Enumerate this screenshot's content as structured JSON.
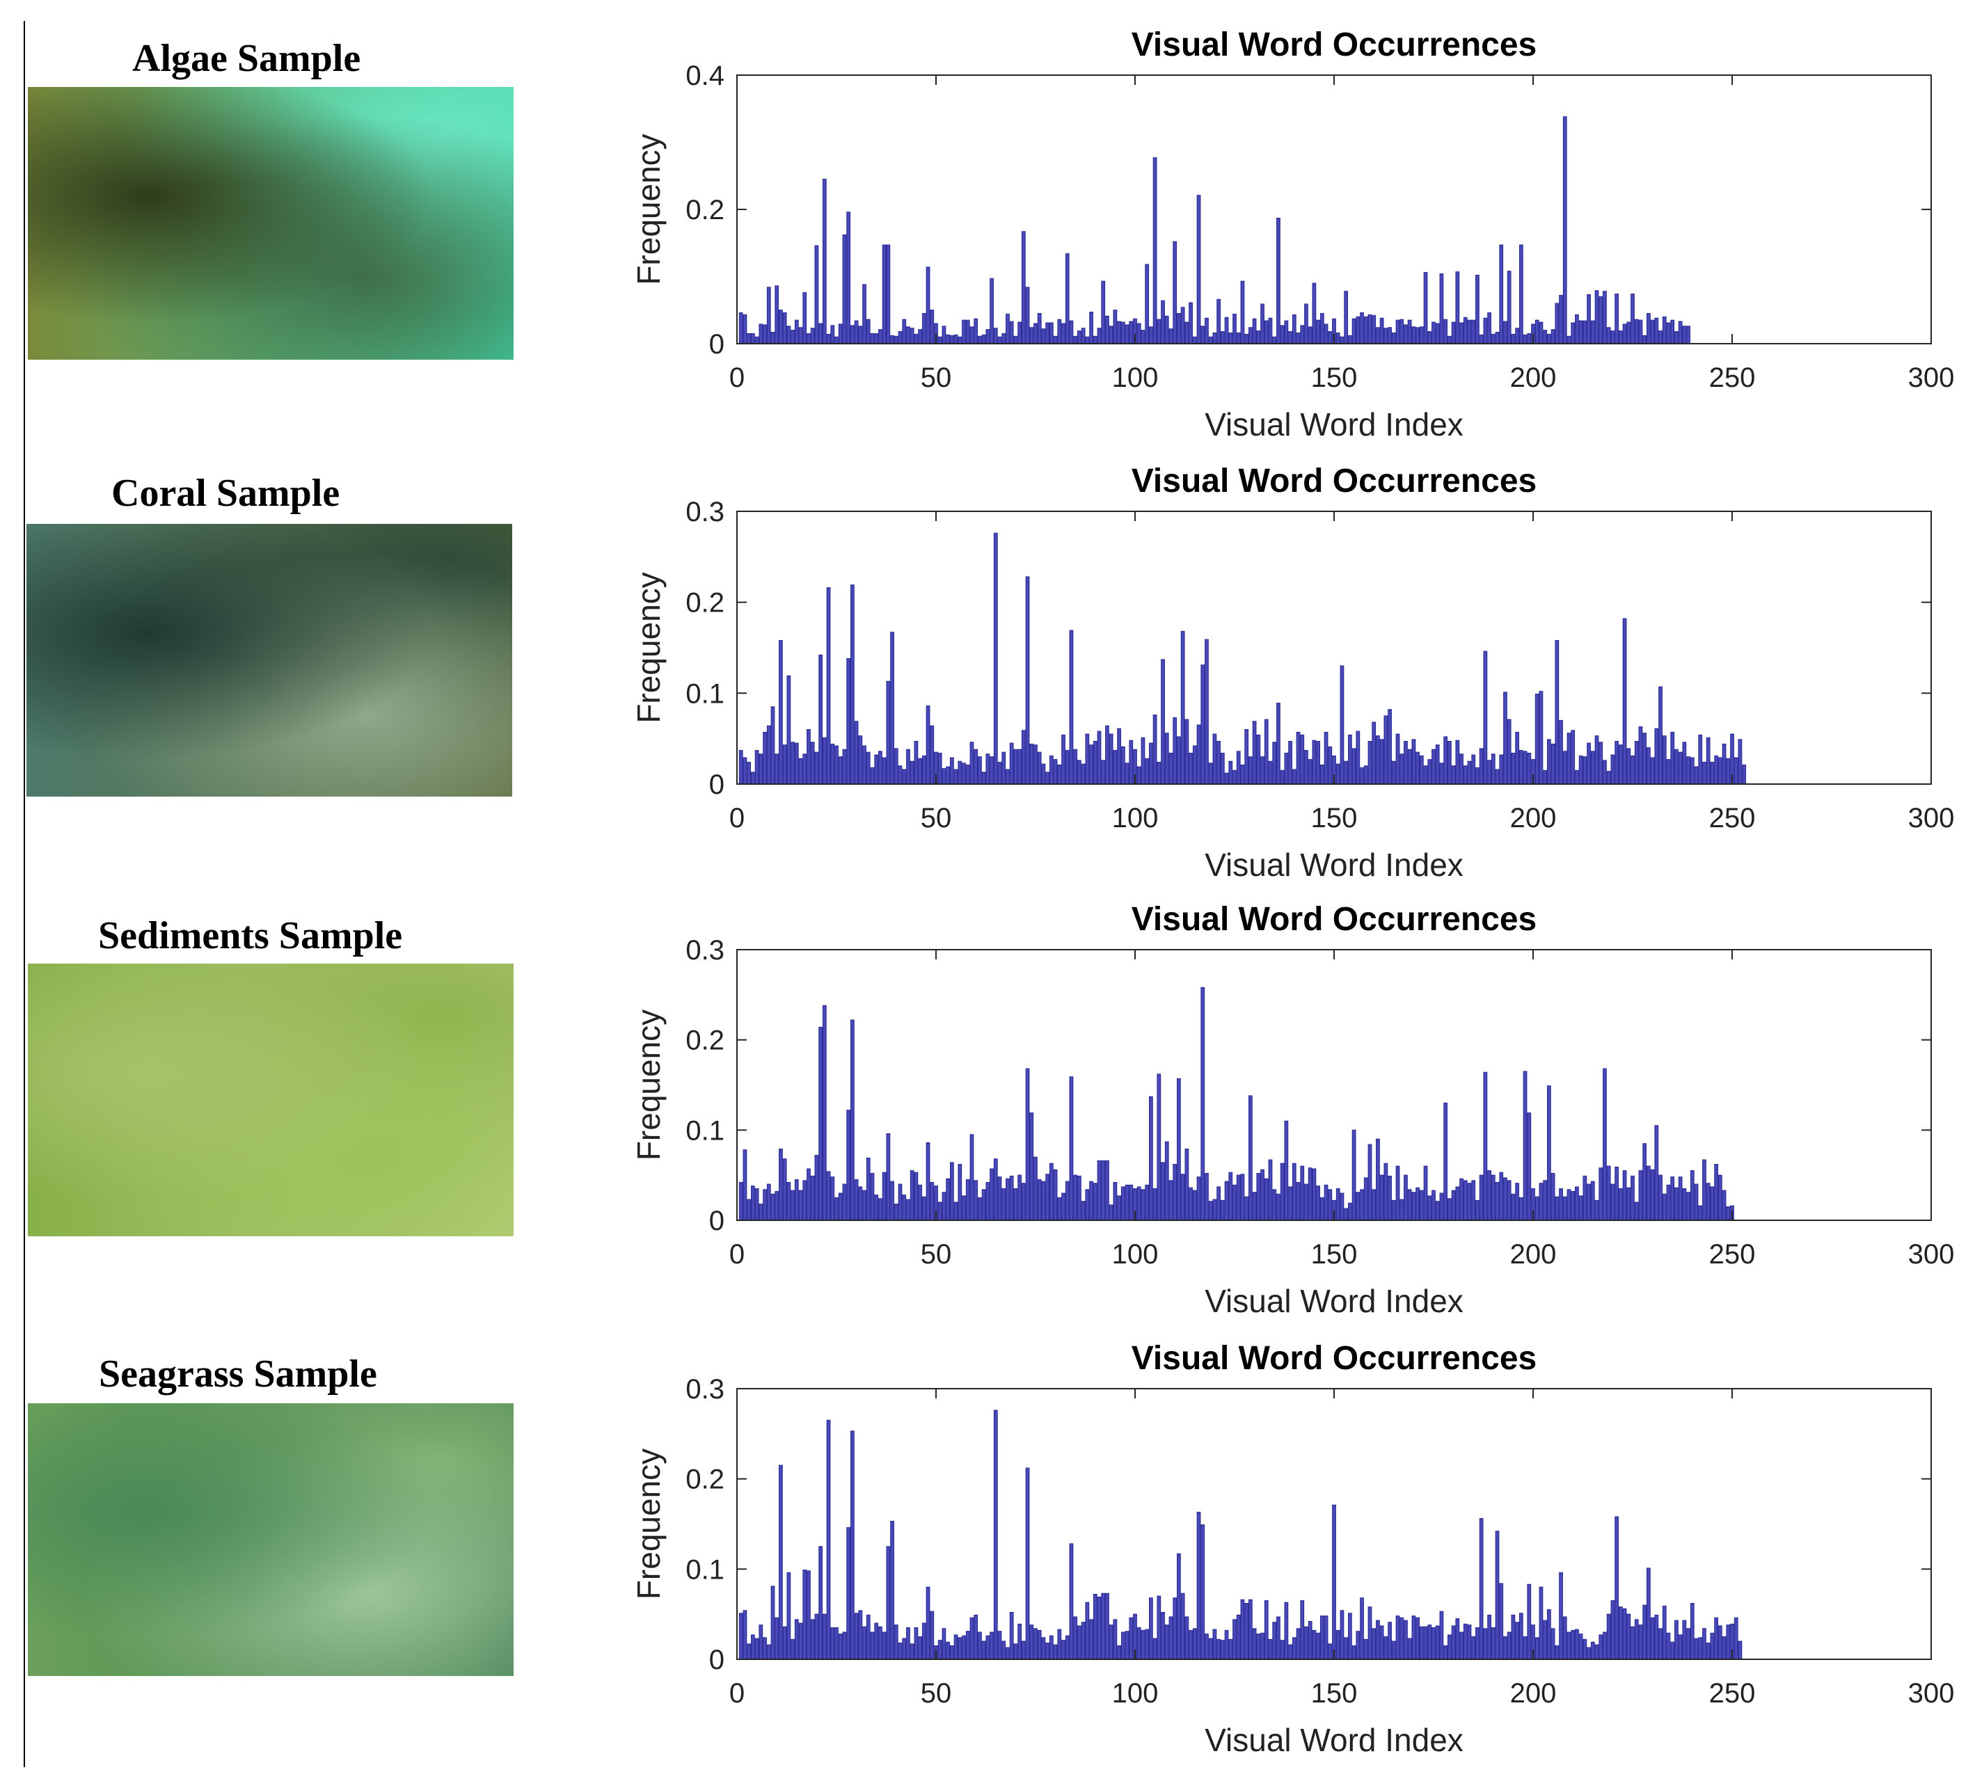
{
  "figure": {
    "panels": [
      {
        "sample_label": "Algae Sample",
        "photo_name": "algae-sample-photo",
        "colors": [
          "#2f3c1a",
          "#7a8a3a",
          "#3f6f4a",
          "#3fd6a8",
          "#6ae6c2"
        ]
      },
      {
        "sample_label": "Coral Sample",
        "photo_name": "coral-sample-photo",
        "colors": [
          "#1f3a33",
          "#4e7a6a",
          "#8fa88a",
          "#5d6a3a",
          "#2c4a3a"
        ]
      },
      {
        "sample_label": "Sediments Sample",
        "photo_name": "sediments-sample-photo",
        "colors": [
          "#a7c26a",
          "#88b04a",
          "#9cc25a",
          "#b9cf7a",
          "#8fb24e"
        ]
      },
      {
        "sample_label": "Seagrass Sample",
        "photo_name": "seagrass-sample-photo",
        "colors": [
          "#4a8a58",
          "#6aa05a",
          "#9cc69a",
          "#3f7a4e",
          "#7fb070"
        ]
      }
    ]
  },
  "chart_data": [
    {
      "type": "bar",
      "title": "Visual Word Occurrences",
      "xlabel": "Visual Word Index",
      "ylabel": "Frequency",
      "xlim": [
        0,
        300
      ],
      "ylim": [
        0,
        0.4
      ],
      "xticks": [
        0,
        50,
        100,
        150,
        200,
        250,
        300
      ],
      "yticks": [
        0,
        0.2,
        0.4
      ],
      "ytick_labels": [
        "0",
        "0.2",
        "0.4"
      ],
      "color": "#2d2d9a",
      "values": [
        0.046,
        0.043,
        0.015,
        0.015,
        0.01,
        0.029,
        0.028,
        0.084,
        0.017,
        0.086,
        0.05,
        0.046,
        0.026,
        0.02,
        0.035,
        0.024,
        0.076,
        0.015,
        0.023,
        0.146,
        0.03,
        0.245,
        0.014,
        0.027,
        0.01,
        0.029,
        0.162,
        0.196,
        0.027,
        0.034,
        0.026,
        0.088,
        0.036,
        0.015,
        0.015,
        0.021,
        0.147,
        0.147,
        0.012,
        0.011,
        0.018,
        0.036,
        0.025,
        0.023,
        0.014,
        0.021,
        0.045,
        0.114,
        0.05,
        0.03,
        0.01,
        0.026,
        0.013,
        0.012,
        0.013,
        0.01,
        0.035,
        0.035,
        0.025,
        0.037,
        0.011,
        0.013,
        0.021,
        0.097,
        0.023,
        0.01,
        0.015,
        0.044,
        0.033,
        0.011,
        0.032,
        0.167,
        0.084,
        0.024,
        0.03,
        0.045,
        0.022,
        0.031,
        0.031,
        0.011,
        0.036,
        0.03,
        0.134,
        0.034,
        0.011,
        0.019,
        0.023,
        0.01,
        0.047,
        0.011,
        0.023,
        0.093,
        0.041,
        0.026,
        0.05,
        0.033,
        0.032,
        0.028,
        0.033,
        0.037,
        0.03,
        0.02,
        0.118,
        0.025,
        0.277,
        0.036,
        0.064,
        0.041,
        0.022,
        0.152,
        0.045,
        0.054,
        0.032,
        0.061,
        0.01,
        0.221,
        0.026,
        0.038,
        0.01,
        0.016,
        0.066,
        0.018,
        0.039,
        0.016,
        0.044,
        0.016,
        0.093,
        0.014,
        0.024,
        0.037,
        0.019,
        0.059,
        0.034,
        0.038,
        0.01,
        0.187,
        0.027,
        0.034,
        0.018,
        0.043,
        0.016,
        0.027,
        0.059,
        0.025,
        0.09,
        0.035,
        0.045,
        0.029,
        0.018,
        0.037,
        0.016,
        0.01,
        0.078,
        0.012,
        0.037,
        0.04,
        0.046,
        0.04,
        0.043,
        0.042,
        0.024,
        0.038,
        0.023,
        0.024,
        0.016,
        0.035,
        0.036,
        0.028,
        0.035,
        0.025,
        0.024,
        0.025,
        0.106,
        0.018,
        0.032,
        0.03,
        0.104,
        0.036,
        0.011,
        0.032,
        0.107,
        0.031,
        0.039,
        0.035,
        0.035,
        0.102,
        0.013,
        0.038,
        0.046,
        0.014,
        0.017,
        0.147,
        0.033,
        0.108,
        0.014,
        0.023,
        0.147,
        0.013,
        0.015,
        0.029,
        0.035,
        0.032,
        0.02,
        0.014,
        0.021,
        0.06,
        0.072,
        0.338,
        0.011,
        0.031,
        0.043,
        0.034,
        0.034,
        0.073,
        0.034,
        0.079,
        0.07,
        0.078,
        0.024,
        0.019,
        0.074,
        0.019,
        0.029,
        0.032,
        0.074,
        0.036,
        0.035,
        0.012,
        0.045,
        0.035,
        0.038,
        0.019,
        0.04,
        0.031,
        0.035,
        0.018,
        0.033,
        0.026,
        0.026
      ]
    },
    {
      "type": "bar",
      "title": "Visual Word Occurrences",
      "xlabel": "Visual Word Index",
      "ylabel": "Frequency",
      "xlim": [
        0,
        300
      ],
      "ylim": [
        0,
        0.3
      ],
      "xticks": [
        0,
        50,
        100,
        150,
        200,
        250,
        300
      ],
      "yticks": [
        0,
        0.1,
        0.2,
        0.3
      ],
      "ytick_labels": [
        "0",
        "0.1",
        "0.2",
        "0.3"
      ],
      "color": "#2d2d9a",
      "values": [
        0.037,
        0.029,
        0.024,
        0.013,
        0.037,
        0.033,
        0.057,
        0.064,
        0.085,
        0.033,
        0.158,
        0.043,
        0.119,
        0.046,
        0.045,
        0.028,
        0.033,
        0.06,
        0.046,
        0.035,
        0.142,
        0.051,
        0.216,
        0.044,
        0.042,
        0.03,
        0.038,
        0.138,
        0.219,
        0.069,
        0.053,
        0.042,
        0.035,
        0.018,
        0.032,
        0.036,
        0.029,
        0.113,
        0.167,
        0.039,
        0.02,
        0.016,
        0.038,
        0.025,
        0.047,
        0.028,
        0.031,
        0.086,
        0.064,
        0.035,
        0.034,
        0.017,
        0.019,
        0.029,
        0.016,
        0.025,
        0.023,
        0.021,
        0.046,
        0.038,
        0.03,
        0.013,
        0.033,
        0.03,
        0.276,
        0.024,
        0.035,
        0.016,
        0.045,
        0.038,
        0.038,
        0.059,
        0.228,
        0.044,
        0.043,
        0.035,
        0.022,
        0.013,
        0.031,
        0.027,
        0.021,
        0.054,
        0.037,
        0.169,
        0.038,
        0.026,
        0.022,
        0.055,
        0.043,
        0.047,
        0.058,
        0.026,
        0.064,
        0.055,
        0.037,
        0.061,
        0.041,
        0.023,
        0.048,
        0.038,
        0.019,
        0.051,
        0.028,
        0.045,
        0.076,
        0.024,
        0.137,
        0.056,
        0.034,
        0.073,
        0.052,
        0.168,
        0.071,
        0.034,
        0.042,
        0.065,
        0.131,
        0.159,
        0.023,
        0.055,
        0.047,
        0.034,
        0.012,
        0.025,
        0.015,
        0.036,
        0.021,
        0.06,
        0.03,
        0.069,
        0.054,
        0.03,
        0.071,
        0.025,
        0.046,
        0.089,
        0.015,
        0.034,
        0.047,
        0.016,
        0.057,
        0.054,
        0.037,
        0.027,
        0.048,
        0.047,
        0.021,
        0.057,
        0.041,
        0.031,
        0.022,
        0.13,
        0.025,
        0.054,
        0.039,
        0.058,
        0.018,
        0.02,
        0.047,
        0.068,
        0.053,
        0.049,
        0.075,
        0.082,
        0.025,
        0.055,
        0.033,
        0.047,
        0.038,
        0.049,
        0.035,
        0.031,
        0.02,
        0.027,
        0.038,
        0.043,
        0.023,
        0.052,
        0.047,
        0.02,
        0.048,
        0.033,
        0.02,
        0.025,
        0.032,
        0.018,
        0.039,
        0.146,
        0.026,
        0.033,
        0.016,
        0.032,
        0.101,
        0.071,
        0.034,
        0.057,
        0.037,
        0.036,
        0.034,
        0.027,
        0.099,
        0.102,
        0.015,
        0.049,
        0.044,
        0.158,
        0.07,
        0.036,
        0.056,
        0.059,
        0.015,
        0.031,
        0.03,
        0.045,
        0.036,
        0.053,
        0.046,
        0.026,
        0.014,
        0.032,
        0.047,
        0.043,
        0.182,
        0.039,
        0.031,
        0.047,
        0.063,
        0.056,
        0.04,
        0.029,
        0.061,
        0.107,
        0.053,
        0.027,
        0.057,
        0.038,
        0.035,
        0.046,
        0.03,
        0.029,
        0.019,
        0.054,
        0.024,
        0.051,
        0.024,
        0.031,
        0.029,
        0.044,
        0.028,
        0.055,
        0.029,
        0.049,
        0.021
      ]
    },
    {
      "type": "bar",
      "title": "Visual Word Occurrences",
      "xlabel": "Visual Word Index",
      "ylabel": "Frequency",
      "xlim": [
        0,
        300
      ],
      "ylim": [
        0,
        0.3
      ],
      "xticks": [
        0,
        50,
        100,
        150,
        200,
        250,
        300
      ],
      "yticks": [
        0,
        0.1,
        0.2,
        0.3
      ],
      "ytick_labels": [
        "0",
        "0.1",
        "0.2",
        "0.3"
      ],
      "color": "#2d2d9a",
      "values": [
        0.042,
        0.078,
        0.023,
        0.038,
        0.035,
        0.018,
        0.034,
        0.04,
        0.029,
        0.032,
        0.079,
        0.068,
        0.042,
        0.033,
        0.045,
        0.033,
        0.044,
        0.057,
        0.049,
        0.072,
        0.214,
        0.238,
        0.054,
        0.048,
        0.025,
        0.03,
        0.04,
        0.122,
        0.222,
        0.045,
        0.037,
        0.033,
        0.069,
        0.052,
        0.028,
        0.024,
        0.053,
        0.096,
        0.043,
        0.018,
        0.04,
        0.028,
        0.023,
        0.055,
        0.053,
        0.039,
        0.026,
        0.086,
        0.042,
        0.038,
        0.02,
        0.031,
        0.046,
        0.064,
        0.02,
        0.062,
        0.027,
        0.045,
        0.095,
        0.044,
        0.025,
        0.034,
        0.042,
        0.057,
        0.068,
        0.048,
        0.035,
        0.046,
        0.049,
        0.035,
        0.05,
        0.041,
        0.168,
        0.119,
        0.07,
        0.045,
        0.043,
        0.051,
        0.063,
        0.056,
        0.025,
        0.03,
        0.043,
        0.159,
        0.05,
        0.049,
        0.021,
        0.034,
        0.043,
        0.041,
        0.066,
        0.066,
        0.066,
        0.017,
        0.042,
        0.027,
        0.037,
        0.039,
        0.039,
        0.035,
        0.037,
        0.034,
        0.039,
        0.137,
        0.035,
        0.162,
        0.064,
        0.087,
        0.044,
        0.062,
        0.157,
        0.051,
        0.079,
        0.036,
        0.033,
        0.048,
        0.258,
        0.052,
        0.021,
        0.023,
        0.037,
        0.022,
        0.043,
        0.053,
        0.039,
        0.05,
        0.051,
        0.026,
        0.138,
        0.031,
        0.052,
        0.056,
        0.046,
        0.067,
        0.034,
        0.029,
        0.063,
        0.11,
        0.037,
        0.063,
        0.042,
        0.06,
        0.04,
        0.058,
        0.057,
        0.038,
        0.025,
        0.039,
        0.034,
        0.022,
        0.035,
        0.03,
        0.013,
        0.019,
        0.1,
        0.031,
        0.034,
        0.047,
        0.084,
        0.034,
        0.09,
        0.05,
        0.063,
        0.049,
        0.022,
        0.06,
        0.023,
        0.05,
        0.034,
        0.031,
        0.036,
        0.033,
        0.06,
        0.027,
        0.033,
        0.021,
        0.03,
        0.13,
        0.024,
        0.033,
        0.037,
        0.046,
        0.044,
        0.041,
        0.044,
        0.022,
        0.05,
        0.164,
        0.055,
        0.05,
        0.042,
        0.053,
        0.047,
        0.044,
        0.029,
        0.041,
        0.025,
        0.165,
        0.119,
        0.035,
        0.026,
        0.041,
        0.044,
        0.149,
        0.052,
        0.026,
        0.035,
        0.026,
        0.034,
        0.032,
        0.037,
        0.027,
        0.049,
        0.04,
        0.043,
        0.022,
        0.058,
        0.168,
        0.06,
        0.04,
        0.059,
        0.035,
        0.055,
        0.036,
        0.049,
        0.02,
        0.055,
        0.085,
        0.06,
        0.056,
        0.105,
        0.05,
        0.029,
        0.039,
        0.048,
        0.036,
        0.048,
        0.035,
        0.031,
        0.055,
        0.04,
        0.016,
        0.067,
        0.041,
        0.037,
        0.062,
        0.05,
        0.033,
        0.015,
        0.016
      ]
    },
    {
      "type": "bar",
      "title": "Visual Word Occurrences",
      "xlabel": "Visual Word Index",
      "ylabel": "Frequency",
      "xlim": [
        0,
        300
      ],
      "ylim": [
        0,
        0.3
      ],
      "xticks": [
        0,
        50,
        100,
        150,
        200,
        250,
        300
      ],
      "yticks": [
        0,
        0.1,
        0.2,
        0.3
      ],
      "ytick_labels": [
        "0",
        "0.1",
        "0.2",
        "0.3"
      ],
      "color": "#2d2d9a",
      "values": [
        0.051,
        0.054,
        0.017,
        0.027,
        0.023,
        0.038,
        0.024,
        0.016,
        0.081,
        0.046,
        0.215,
        0.036,
        0.096,
        0.022,
        0.044,
        0.04,
        0.099,
        0.098,
        0.044,
        0.05,
        0.125,
        0.05,
        0.265,
        0.035,
        0.035,
        0.028,
        0.03,
        0.146,
        0.253,
        0.051,
        0.054,
        0.036,
        0.049,
        0.03,
        0.04,
        0.036,
        0.03,
        0.125,
        0.153,
        0.038,
        0.018,
        0.023,
        0.035,
        0.017,
        0.035,
        0.025,
        0.04,
        0.08,
        0.053,
        0.015,
        0.021,
        0.034,
        0.019,
        0.015,
        0.027,
        0.024,
        0.026,
        0.031,
        0.046,
        0.049,
        0.03,
        0.02,
        0.026,
        0.03,
        0.276,
        0.031,
        0.02,
        0.013,
        0.052,
        0.017,
        0.039,
        0.02,
        0.212,
        0.038,
        0.034,
        0.032,
        0.024,
        0.018,
        0.026,
        0.016,
        0.033,
        0.021,
        0.026,
        0.128,
        0.047,
        0.037,
        0.041,
        0.063,
        0.044,
        0.072,
        0.069,
        0.073,
        0.073,
        0.038,
        0.044,
        0.015,
        0.03,
        0.031,
        0.046,
        0.05,
        0.035,
        0.032,
        0.033,
        0.068,
        0.023,
        0.07,
        0.052,
        0.038,
        0.047,
        0.068,
        0.117,
        0.073,
        0.047,
        0.032,
        0.034,
        0.163,
        0.149,
        0.028,
        0.023,
        0.033,
        0.022,
        0.021,
        0.032,
        0.022,
        0.044,
        0.049,
        0.066,
        0.062,
        0.066,
        0.034,
        0.028,
        0.029,
        0.065,
        0.022,
        0.041,
        0.047,
        0.021,
        0.063,
        0.016,
        0.024,
        0.034,
        0.065,
        0.036,
        0.042,
        0.032,
        0.029,
        0.048,
        0.048,
        0.017,
        0.171,
        0.032,
        0.054,
        0.024,
        0.051,
        0.015,
        0.031,
        0.068,
        0.022,
        0.058,
        0.034,
        0.043,
        0.037,
        0.025,
        0.041,
        0.02,
        0.048,
        0.046,
        0.043,
        0.023,
        0.048,
        0.046,
        0.036,
        0.036,
        0.038,
        0.035,
        0.037,
        0.053,
        0.015,
        0.027,
        0.037,
        0.045,
        0.03,
        0.039,
        0.038,
        0.025,
        0.035,
        0.156,
        0.034,
        0.049,
        0.035,
        0.142,
        0.084,
        0.025,
        0.03,
        0.049,
        0.041,
        0.051,
        0.025,
        0.083,
        0.038,
        0.024,
        0.08,
        0.043,
        0.055,
        0.034,
        0.015,
        0.096,
        0.047,
        0.03,
        0.032,
        0.033,
        0.028,
        0.022,
        0.013,
        0.019,
        0.016,
        0.027,
        0.03,
        0.05,
        0.065,
        0.158,
        0.058,
        0.056,
        0.05,
        0.036,
        0.044,
        0.038,
        0.06,
        0.101,
        0.046,
        0.049,
        0.034,
        0.059,
        0.029,
        0.019,
        0.043,
        0.027,
        0.043,
        0.034,
        0.062,
        0.023,
        0.024,
        0.034,
        0.018,
        0.029,
        0.046,
        0.037,
        0.025,
        0.038,
        0.039,
        0.046,
        0.02
      ]
    }
  ]
}
